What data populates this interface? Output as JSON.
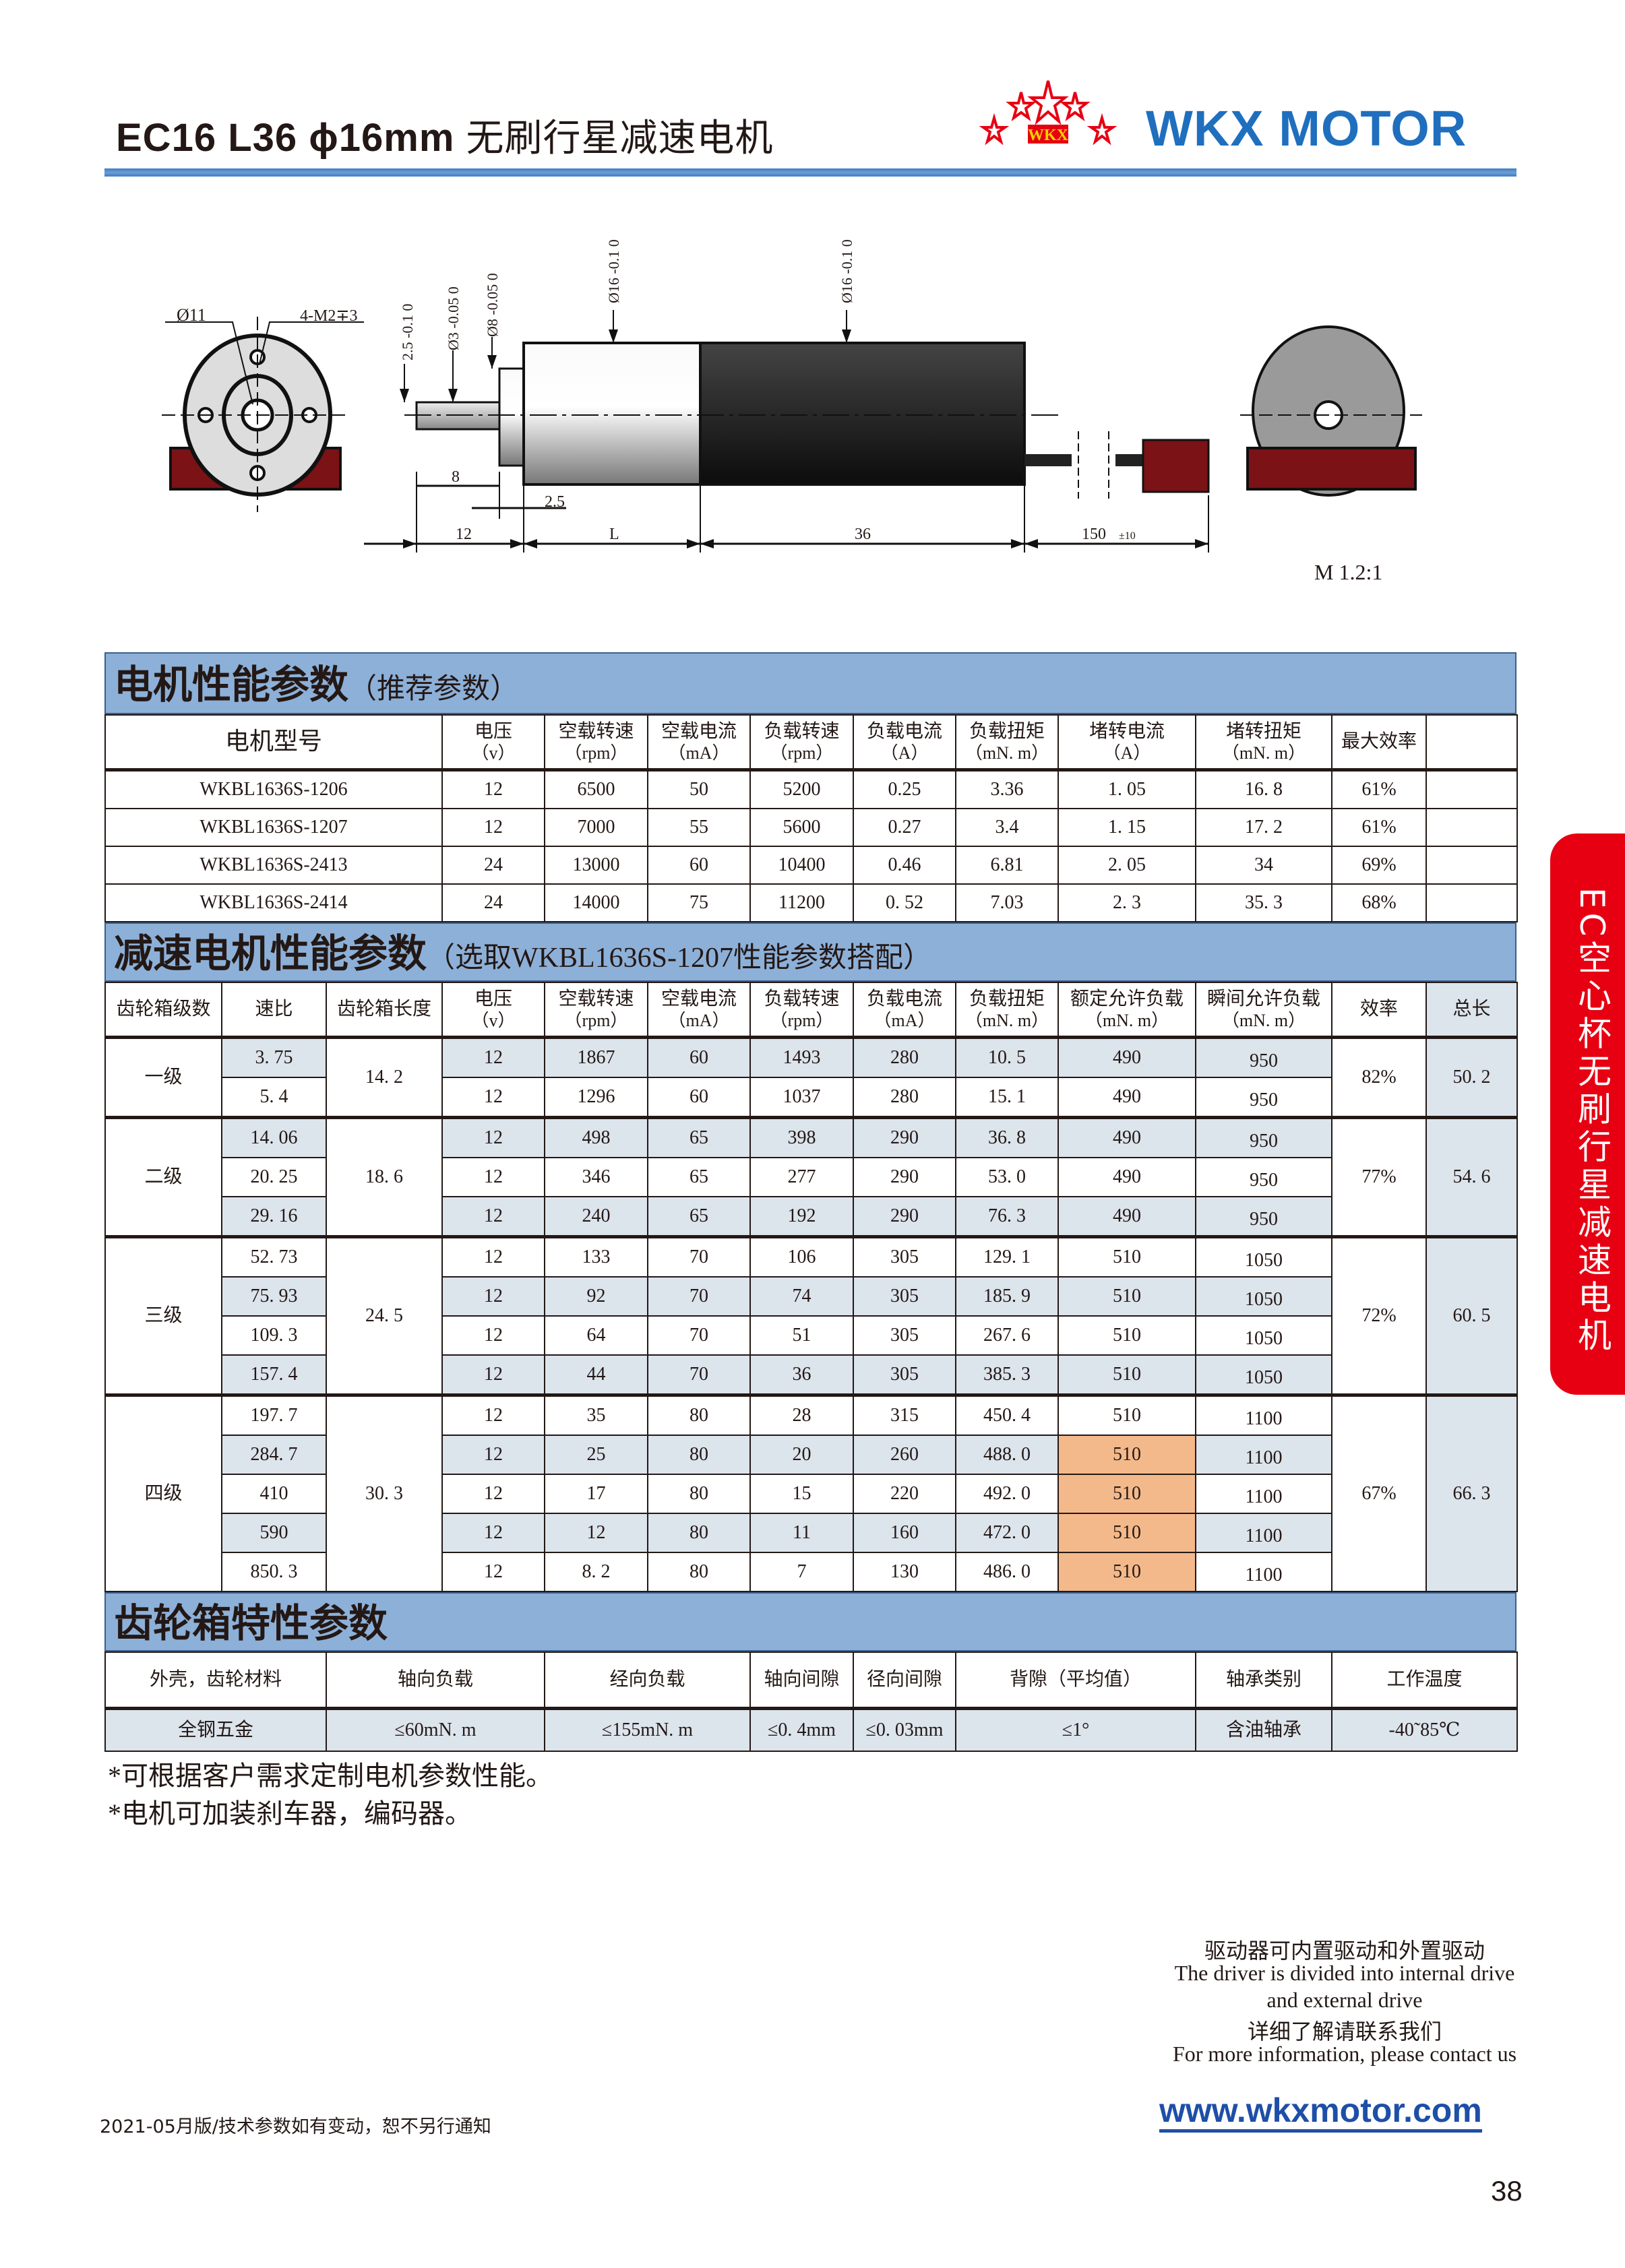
{
  "header": {
    "title_model": "EC16 L36 ϕ16mm",
    "title_cn": "无刷行星减速电机",
    "logo_text": "WKX",
    "brand": "WKX MOTOR"
  },
  "drawing": {
    "phi11": "Ø11",
    "screw": "4-M2∓3",
    "dim_2_5_v": "2.5 -0.1 0",
    "dim_phi3": "Ø3 -0.05 0",
    "dim_phi8": "Ø8 -0.05 0",
    "dim_phi16_a": "Ø16 -0.1 0",
    "dim_phi16_b": "Ø16 -0.1 0",
    "dim_8": "8",
    "dim_2_5": "2.5",
    "dim_12": "12",
    "dim_L": "L",
    "dim_36": "36",
    "dim_150": "150",
    "dim_150_tol": "±10",
    "scale": "M 1.2:1"
  },
  "motor_section": {
    "title": "电机性能参数",
    "subtitle": "（推荐参数）",
    "headers": [
      [
        "电机型号",
        ""
      ],
      [
        "电压",
        "（v）"
      ],
      [
        "空载转速",
        "（rpm）"
      ],
      [
        "空载电流",
        "（mA）"
      ],
      [
        "负载转速",
        "（rpm）"
      ],
      [
        "负载电流",
        "（A）"
      ],
      [
        "负载扭矩",
        "（mN. m）"
      ],
      [
        "堵转电流",
        "（A）"
      ],
      [
        "堵转扭矩",
        "（mN. m）"
      ],
      [
        "最大效率",
        ""
      ],
      [
        "",
        ""
      ]
    ],
    "rows": [
      [
        "WKBL1636S-1206",
        "12",
        "6500",
        "50",
        "5200",
        "0.25",
        "3.36",
        "1. 05",
        "16. 8",
        "61%",
        ""
      ],
      [
        "WKBL1636S-1207",
        "12",
        "7000",
        "55",
        "5600",
        "0.27",
        "3.4",
        "1. 15",
        "17. 2",
        "61%",
        ""
      ],
      [
        "WKBL1636S-2413",
        "24",
        "13000",
        "60",
        "10400",
        "0.46",
        "6.81",
        "2. 05",
        "34",
        "69%",
        ""
      ],
      [
        "WKBL1636S-2414",
        "24",
        "14000",
        "75",
        "11200",
        "0. 52",
        "7.03",
        "2. 3",
        "35. 3",
        "68%",
        ""
      ]
    ]
  },
  "gear_section": {
    "title": "减速电机性能参数",
    "subtitle": "（选取WKBL1636S-1207性能参数搭配）",
    "headers": [
      [
        "齿轮箱级数",
        ""
      ],
      [
        "速比",
        ""
      ],
      [
        "齿轮箱长度",
        ""
      ],
      [
        "电压",
        "（v）"
      ],
      [
        "空载转速",
        "（rpm）"
      ],
      [
        "空载电流",
        "（mA）"
      ],
      [
        "负载转速",
        "（rpm）"
      ],
      [
        "负载电流",
        "（mA）"
      ],
      [
        "负载扭矩",
        "（mN. m）"
      ],
      [
        "额定允许负载",
        "（mN. m）"
      ],
      [
        "瞬间允许负载",
        "（mN. m）"
      ],
      [
        "效率",
        ""
      ],
      [
        "总长",
        ""
      ]
    ],
    "highlight_colors": {
      "shade": "#dce4ec",
      "rated_load": "#f4b98a"
    },
    "groups": [
      {
        "stage": "一级",
        "length": "14. 2",
        "efficiency": "82%",
        "total": "50. 2",
        "rows": [
          {
            "ratio": "3. 75",
            "v": [
              "12",
              "1867",
              "60",
              "1493",
              "280",
              "10. 5",
              "490",
              "950"
            ],
            "shade": true,
            "rated_highlight": false
          },
          {
            "ratio": "5. 4",
            "v": [
              "12",
              "1296",
              "60",
              "1037",
              "280",
              "15. 1",
              "490",
              "950"
            ],
            "shade": false,
            "rated_highlight": false
          }
        ]
      },
      {
        "stage": "二级",
        "length": "18. 6",
        "efficiency": "77%",
        "total": "54. 6",
        "rows": [
          {
            "ratio": "14. 06",
            "v": [
              "12",
              "498",
              "65",
              "398",
              "290",
              "36. 8",
              "490",
              "950"
            ],
            "shade": true,
            "rated_highlight": false
          },
          {
            "ratio": "20. 25",
            "v": [
              "12",
              "346",
              "65",
              "277",
              "290",
              "53. 0",
              "490",
              "950"
            ],
            "shade": false,
            "rated_highlight": false
          },
          {
            "ratio": "29. 16",
            "v": [
              "12",
              "240",
              "65",
              "192",
              "290",
              "76. 3",
              "490",
              "950"
            ],
            "shade": true,
            "rated_highlight": false
          }
        ]
      },
      {
        "stage": "三级",
        "length": "24. 5",
        "efficiency": "72%",
        "total": "60. 5",
        "rows": [
          {
            "ratio": "52. 73",
            "v": [
              "12",
              "133",
              "70",
              "106",
              "305",
              "129. 1",
              "510",
              "1050"
            ],
            "shade": false,
            "rated_highlight": false
          },
          {
            "ratio": "75. 93",
            "v": [
              "12",
              "92",
              "70",
              "74",
              "305",
              "185. 9",
              "510",
              "1050"
            ],
            "shade": true,
            "rated_highlight": false
          },
          {
            "ratio": "109. 3",
            "v": [
              "12",
              "64",
              "70",
              "51",
              "305",
              "267. 6",
              "510",
              "1050"
            ],
            "shade": false,
            "rated_highlight": false
          },
          {
            "ratio": "157. 4",
            "v": [
              "12",
              "44",
              "70",
              "36",
              "305",
              "385. 3",
              "510",
              "1050"
            ],
            "shade": true,
            "rated_highlight": false
          }
        ]
      },
      {
        "stage": "四级",
        "length": "30. 3",
        "efficiency": "67%",
        "total": "66. 3",
        "rows": [
          {
            "ratio": "197. 7",
            "v": [
              "12",
              "35",
              "80",
              "28",
              "315",
              "450. 4",
              "510",
              "1100"
            ],
            "shade": false,
            "rated_highlight": false
          },
          {
            "ratio": "284. 7",
            "v": [
              "12",
              "25",
              "80",
              "20",
              "260",
              "488. 0",
              "510",
              "1100"
            ],
            "shade": true,
            "rated_highlight": true
          },
          {
            "ratio": "410",
            "v": [
              "12",
              "17",
              "80",
              "15",
              "220",
              "492. 0",
              "510",
              "1100"
            ],
            "shade": false,
            "rated_highlight": true
          },
          {
            "ratio": "590",
            "v": [
              "12",
              "12",
              "80",
              "11",
              "160",
              "472. 0",
              "510",
              "1100"
            ],
            "shade": true,
            "rated_highlight": true
          },
          {
            "ratio": "850. 3",
            "v": [
              "12",
              "8. 2",
              "80",
              "7",
              "130",
              "486. 0",
              "510",
              "1100"
            ],
            "shade": false,
            "rated_highlight": true
          }
        ]
      }
    ]
  },
  "gearbox_section": {
    "title": "齿轮箱特性参数",
    "headers": [
      "外壳，齿轮材料",
      "轴向负载",
      "经向负载",
      "轴向间隙",
      "径向间隙",
      "背隙（平均值）",
      "轴承类别",
      "工作温度"
    ],
    "values": [
      "全钢五金",
      "≤60mN. m",
      "≤155mN. m",
      "≤0. 4mm",
      "≤0. 03mm",
      "≤1°",
      "含油轴承",
      "-40˜85℃"
    ]
  },
  "notes": [
    "*可根据客户需求定制电机参数性能。",
    "*电机可加装刹车器，编码器。"
  ],
  "side_tab": "EC空心杯无刷行星减速电机",
  "info": [
    "驱动器可内置驱动和外置驱动",
    "The driver is divided into internal drive",
    "and external drive",
    "详细了解请联系我们",
    "For more information, please contact us"
  ],
  "url": "www.wkxmotor.com",
  "edition": "2021-05月版/技术参数如有变动，恕不另行通知",
  "page_number": "38"
}
